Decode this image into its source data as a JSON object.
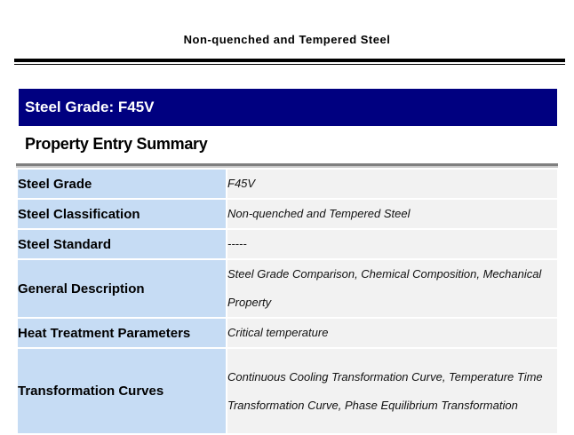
{
  "document": {
    "title": "Non-quenched and Tempered Steel"
  },
  "banner": {
    "text": "Steel Grade: F45V"
  },
  "section": {
    "heading": "Property Entry Summary"
  },
  "table": {
    "rows": [
      {
        "label": "Steel Grade",
        "value": "F45V"
      },
      {
        "label": "Steel Classification",
        "value": "Non-quenched and Tempered Steel"
      },
      {
        "label": "Steel Standard",
        "value": "-----"
      },
      {
        "label": "General Description",
        "value": "Steel Grade Comparison, Chemical Composition, Mechanical Property"
      },
      {
        "label": "Heat Treatment Parameters",
        "value": "Critical temperature"
      },
      {
        "label": "Transformation Curves",
        "value": "Continuous Cooling Transformation Curve, Temperature Time Transformation Curve, Phase Equilibrium Transformation"
      }
    ]
  },
  "colors": {
    "banner_bg": "#000080",
    "label_bg": "#c6dcf4",
    "value_bg": "#f2f2f2"
  }
}
